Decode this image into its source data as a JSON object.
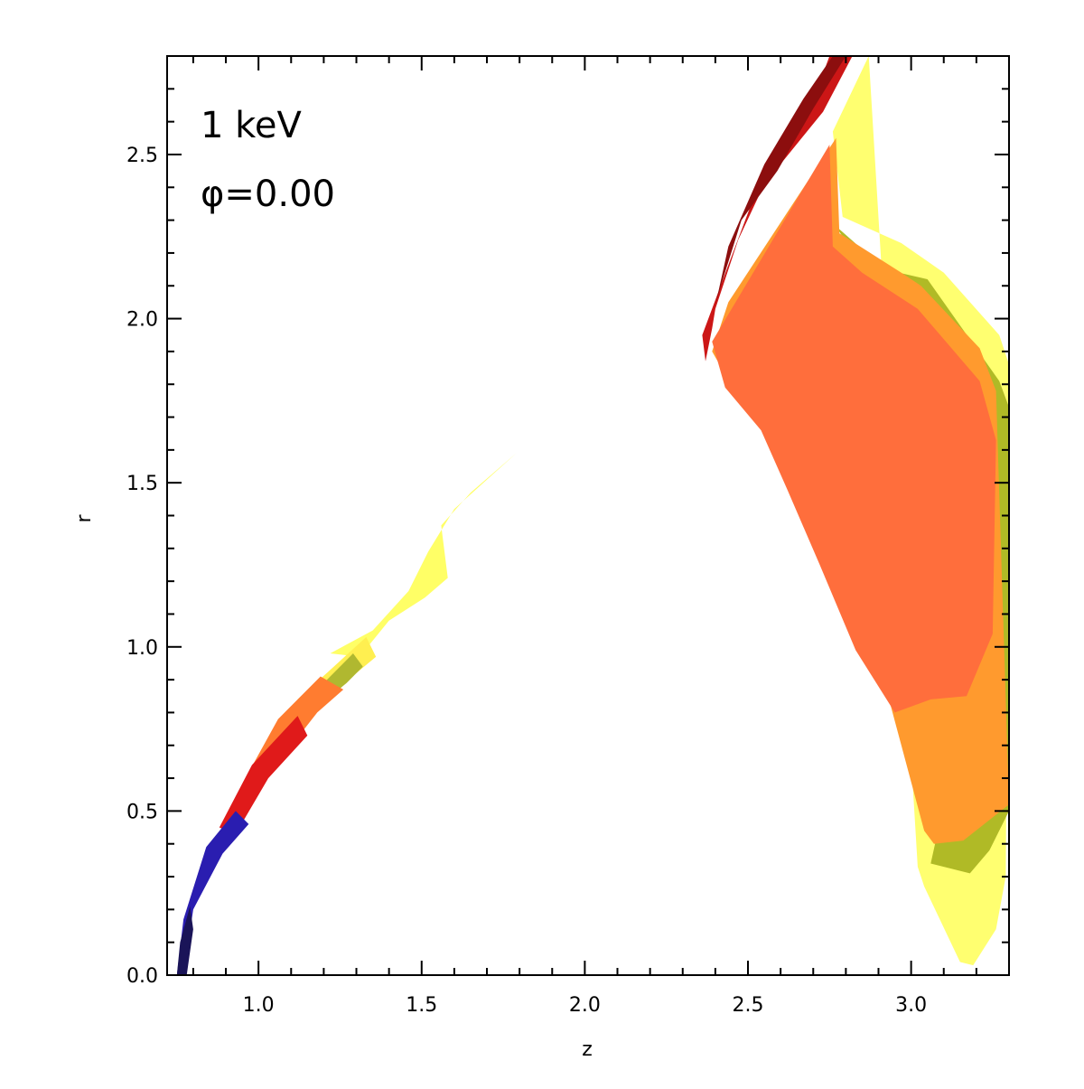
{
  "chart_data": {
    "type": "heatmap",
    "title": "",
    "xlabel": "z",
    "ylabel": "r",
    "xlim": [
      0.72,
      3.3
    ],
    "ylim": [
      0.0,
      2.8
    ],
    "x_ticks": [
      {
        "value": 1.0,
        "label": "1.0"
      },
      {
        "value": 1.5,
        "label": "1.5"
      },
      {
        "value": 2.0,
        "label": "2.0"
      },
      {
        "value": 2.5,
        "label": "2.5"
      },
      {
        "value": 3.0,
        "label": "3.0"
      }
    ],
    "y_ticks": [
      {
        "value": 0.0,
        "label": "0.0"
      },
      {
        "value": 0.5,
        "label": "0.5"
      },
      {
        "value": 1.0,
        "label": "1.0"
      },
      {
        "value": 1.5,
        "label": "1.5"
      },
      {
        "value": 2.0,
        "label": "2.0"
      },
      {
        "value": 2.5,
        "label": "2.5"
      }
    ],
    "x_minor_step": 0.1,
    "y_minor_step": 0.1,
    "grid": false,
    "annotations": [
      "1  keV",
      "φ=0.00"
    ],
    "regions": [
      {
        "color": "#ffff66",
        "points": [
          [
            1.79,
            1.59
          ],
          [
            1.6,
            1.42
          ],
          [
            1.52,
            1.29
          ],
          [
            1.46,
            1.17
          ],
          [
            1.35,
            1.05
          ],
          [
            1.22,
            0.98
          ],
          [
            1.31,
            0.97
          ],
          [
            1.4,
            1.08
          ],
          [
            1.51,
            1.15
          ],
          [
            1.58,
            1.21
          ],
          [
            1.56,
            1.37
          ],
          [
            1.65,
            1.47
          ]
        ]
      },
      {
        "color": "#ffef50",
        "points": [
          [
            1.33,
            1.03
          ],
          [
            1.22,
            0.93
          ],
          [
            1.12,
            0.84
          ],
          [
            1.12,
            0.81
          ],
          [
            1.22,
            0.85
          ],
          [
            1.3,
            0.92
          ],
          [
            1.36,
            0.97
          ]
        ]
      },
      {
        "color": "#b0b830",
        "points": [
          [
            1.29,
            0.98
          ],
          [
            1.21,
            0.9
          ],
          [
            1.13,
            0.82
          ],
          [
            1.21,
            0.84
          ],
          [
            1.27,
            0.89
          ],
          [
            1.32,
            0.94
          ]
        ]
      },
      {
        "color": "#ff7c30",
        "points": [
          [
            1.19,
            0.91
          ],
          [
            1.06,
            0.78
          ],
          [
            0.96,
            0.6
          ],
          [
            1.07,
            0.66
          ],
          [
            1.18,
            0.8
          ],
          [
            1.26,
            0.87
          ]
        ]
      },
      {
        "color": "#e01a1a",
        "points": [
          [
            1.12,
            0.79
          ],
          [
            0.98,
            0.64
          ],
          [
            0.88,
            0.45
          ],
          [
            0.93,
            0.43
          ],
          [
            1.03,
            0.6
          ],
          [
            1.15,
            0.73
          ]
        ]
      },
      {
        "color": "#2a1db0",
        "points": [
          [
            0.93,
            0.5
          ],
          [
            0.84,
            0.39
          ],
          [
            0.77,
            0.17
          ],
          [
            0.75,
            0.0
          ],
          [
            0.77,
            0.0
          ],
          [
            0.8,
            0.2
          ],
          [
            0.89,
            0.37
          ],
          [
            0.97,
            0.46
          ]
        ]
      },
      {
        "color": "#1a1458",
        "points": [
          [
            0.79,
            0.21
          ],
          [
            0.76,
            0.1
          ],
          [
            0.75,
            0.0
          ],
          [
            0.78,
            0.0
          ],
          [
            0.8,
            0.14
          ]
        ]
      },
      {
        "color": "#ffff70",
        "points": [
          [
            2.87,
            2.8
          ],
          [
            2.76,
            2.57
          ],
          [
            2.79,
            2.31
          ],
          [
            2.97,
            2.23
          ],
          [
            3.1,
            2.14
          ],
          [
            3.27,
            1.95
          ],
          [
            3.3,
            1.86
          ],
          [
            3.29,
            0.3
          ],
          [
            3.26,
            0.14
          ],
          [
            3.19,
            0.03
          ],
          [
            3.15,
            0.04
          ],
          [
            3.04,
            0.27
          ],
          [
            3.02,
            0.33
          ]
        ]
      },
      {
        "color": "#b0ba26",
        "points": [
          [
            2.76,
            2.29
          ],
          [
            2.92,
            2.15
          ],
          [
            3.05,
            2.12
          ],
          [
            3.27,
            1.81
          ],
          [
            3.3,
            1.73
          ],
          [
            3.3,
            0.5
          ],
          [
            3.24,
            0.38
          ],
          [
            3.18,
            0.31
          ],
          [
            3.06,
            0.34
          ],
          [
            3.1,
            0.52
          ],
          [
            3.25,
            0.95
          ],
          [
            3.24,
            1.67
          ]
        ]
      },
      {
        "color": "#ff9a2e",
        "points": [
          [
            2.77,
            2.55
          ],
          [
            2.78,
            2.26
          ],
          [
            2.97,
            2.14
          ],
          [
            3.03,
            2.1
          ],
          [
            3.21,
            1.91
          ],
          [
            3.26,
            1.78
          ],
          [
            3.3,
            0.52
          ],
          [
            3.16,
            0.41
          ],
          [
            3.07,
            0.4
          ],
          [
            3.04,
            0.44
          ],
          [
            2.97,
            0.7
          ],
          [
            2.87,
            1.07
          ],
          [
            2.74,
            1.29
          ],
          [
            2.61,
            1.56
          ],
          [
            2.53,
            1.72
          ],
          [
            2.43,
            1.83
          ],
          [
            2.39,
            1.9
          ],
          [
            2.44,
            2.05
          ]
        ]
      },
      {
        "color": "#ff6e3c",
        "points": [
          [
            2.75,
            2.53
          ],
          [
            2.76,
            2.22
          ],
          [
            2.85,
            2.14
          ],
          [
            3.02,
            2.03
          ],
          [
            3.21,
            1.81
          ],
          [
            3.26,
            1.63
          ],
          [
            3.25,
            1.04
          ],
          [
            3.17,
            0.85
          ],
          [
            3.06,
            0.84
          ],
          [
            2.95,
            0.8
          ],
          [
            2.83,
            0.99
          ],
          [
            2.72,
            1.25
          ],
          [
            2.62,
            1.48
          ],
          [
            2.54,
            1.66
          ],
          [
            2.43,
            1.79
          ],
          [
            2.39,
            1.93
          ]
        ]
      },
      {
        "color": "#cc1616",
        "points": [
          [
            2.82,
            2.8
          ],
          [
            2.73,
            2.63
          ],
          [
            2.55,
            2.41
          ],
          [
            2.47,
            2.24
          ],
          [
            2.4,
            2.03
          ],
          [
            2.39,
            1.97
          ],
          [
            2.37,
            1.87
          ],
          [
            2.36,
            1.95
          ],
          [
            2.45,
            2.19
          ],
          [
            2.56,
            2.48
          ],
          [
            2.67,
            2.66
          ],
          [
            2.72,
            2.72
          ],
          [
            2.75,
            2.8
          ]
        ]
      },
      {
        "color": "#8c0e0e",
        "points": [
          [
            2.8,
            2.8
          ],
          [
            2.7,
            2.64
          ],
          [
            2.59,
            2.45
          ],
          [
            2.48,
            2.3
          ],
          [
            2.42,
            2.11
          ],
          [
            2.4,
            2.04
          ],
          [
            2.44,
            2.22
          ],
          [
            2.55,
            2.47
          ],
          [
            2.67,
            2.67
          ],
          [
            2.76,
            2.8
          ]
        ]
      }
    ]
  }
}
